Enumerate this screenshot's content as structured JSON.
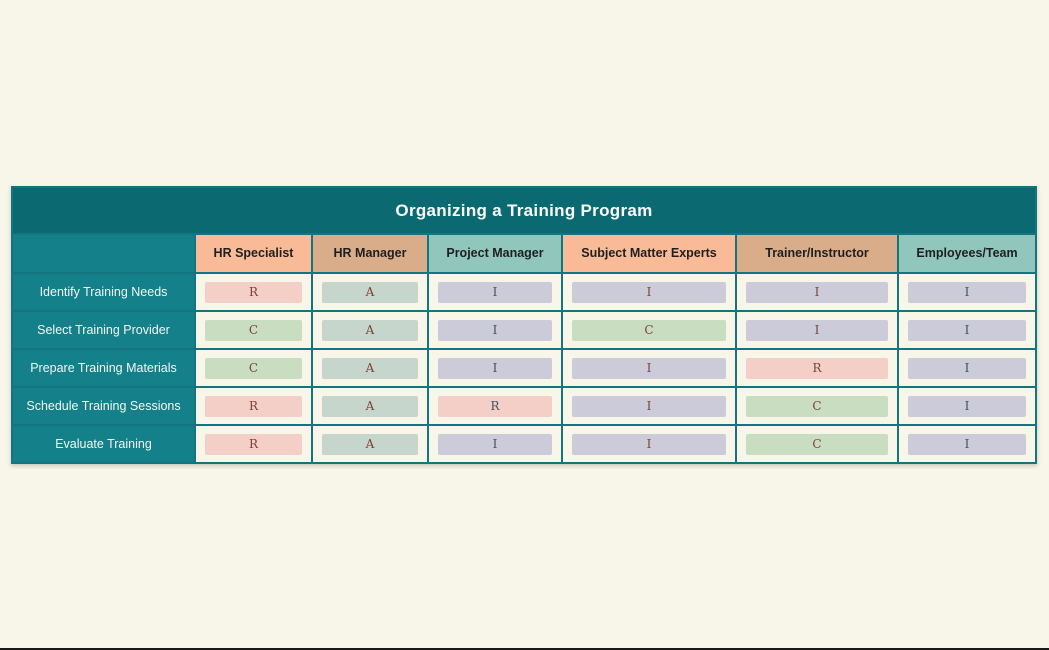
{
  "page": {
    "background_color": "#f8f6e9",
    "bottom_edge_color": "#191919"
  },
  "matrix": {
    "title": "Organizing a Training Program",
    "title_bar_color": "#0b6a71",
    "border_color": "#13767f",
    "label_cell_color": "#13808a",
    "cell_background_color": "#f8f6e9",
    "columns": [
      {
        "label": "HR Specialist",
        "header_bg": "#f9bb97",
        "letter_color": "brown"
      },
      {
        "label": "HR Manager",
        "header_bg": "#d9ac8a",
        "letter_color": "brown"
      },
      {
        "label": "Project Manager",
        "header_bg": "#90c6bc",
        "letter_color": "slate"
      },
      {
        "label": "Subject Matter Experts",
        "header_bg": "#f9bb97",
        "letter_color": "brown"
      },
      {
        "label": "Trainer/Instructor",
        "header_bg": "#d9ac8a",
        "letter_color": "brown"
      },
      {
        "label": "Employees/Team",
        "header_bg": "#90c6bc",
        "letter_color": "slate"
      }
    ],
    "rows": [
      {
        "task": "Identify Training Needs",
        "cells": [
          "R",
          "A",
          "I",
          "I",
          "I",
          "I"
        ]
      },
      {
        "task": "Select Training Provider",
        "cells": [
          "C",
          "A",
          "I",
          "C",
          "I",
          "I"
        ]
      },
      {
        "task": "Prepare Training Materials",
        "cells": [
          "C",
          "A",
          "I",
          "I",
          "R",
          "I"
        ]
      },
      {
        "task": "Schedule Training Sessions",
        "cells": [
          "R",
          "A",
          "R",
          "I",
          "C",
          "I"
        ]
      },
      {
        "task": "Evaluate Training",
        "cells": [
          "R",
          "A",
          "I",
          "I",
          "C",
          "I"
        ]
      }
    ],
    "pill_colors": {
      "R": "#f3cfc8",
      "A": "#c6d6cd",
      "C": "#c9dec1",
      "I": "#cccbda"
    },
    "letter_colors": {
      "brown": "#7d4430",
      "slate": "#3e545c"
    }
  }
}
